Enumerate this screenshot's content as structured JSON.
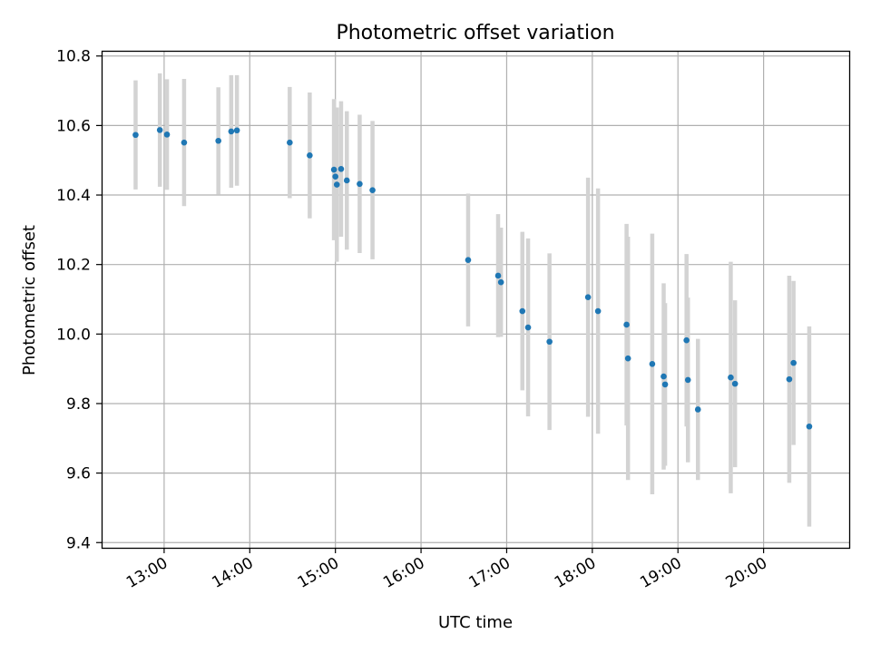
{
  "chart_data": {
    "type": "scatter",
    "title": "Photometric offset variation",
    "xlabel": "UTC time",
    "ylabel": "Photometric offset",
    "x_tick_labels": [
      "13:00",
      "14:00",
      "15:00",
      "16:00",
      "17:00",
      "18:00",
      "19:00",
      "20:00"
    ],
    "x_ticks_hours": [
      13,
      14,
      15,
      16,
      17,
      18,
      19,
      20
    ],
    "xlim_hours": [
      12.27,
      21.0
    ],
    "y_tick_labels": [
      "9.4",
      "9.6",
      "9.8",
      "10.0",
      "10.2",
      "10.4",
      "10.6",
      "10.8"
    ],
    "y_ticks": [
      9.4,
      9.6,
      9.8,
      10.0,
      10.2,
      10.4,
      10.6,
      10.8
    ],
    "ylim": [
      9.385,
      10.815
    ],
    "grid": true,
    "point_color": "#1f77b4",
    "errorbar_color": "#d3d3d3",
    "points": [
      {
        "x": "12:40",
        "y": 10.573,
        "err": 0.157
      },
      {
        "x": "12:57",
        "y": 10.587,
        "err": 0.163
      },
      {
        "x": "13:02",
        "y": 10.574,
        "err": 0.159
      },
      {
        "x": "13:14",
        "y": 10.551,
        "err": 0.183
      },
      {
        "x": "13:38",
        "y": 10.556,
        "err": 0.154
      },
      {
        "x": "13:47",
        "y": 10.583,
        "err": 0.162
      },
      {
        "x": "13:51",
        "y": 10.586,
        "err": 0.159
      },
      {
        "x": "14:28",
        "y": 10.551,
        "err": 0.16
      },
      {
        "x": "14:42",
        "y": 10.514,
        "err": 0.181
      },
      {
        "x": "14:59",
        "y": 10.473,
        "err": 0.203
      },
      {
        "x": "15:00",
        "y": 10.453,
        "err": 0.172
      },
      {
        "x": "15:01",
        "y": 10.43,
        "err": 0.222
      },
      {
        "x": "15:04",
        "y": 10.475,
        "err": 0.195
      },
      {
        "x": "15:08",
        "y": 10.442,
        "err": 0.199
      },
      {
        "x": "15:17",
        "y": 10.432,
        "err": 0.199
      },
      {
        "x": "15:26",
        "y": 10.414,
        "err": 0.199
      },
      {
        "x": "16:33",
        "y": 10.213,
        "err": 0.191
      },
      {
        "x": "16:54",
        "y": 10.168,
        "err": 0.177
      },
      {
        "x": "16:56",
        "y": 10.149,
        "err": 0.157
      },
      {
        "x": "17:11",
        "y": 10.066,
        "err": 0.228
      },
      {
        "x": "17:15",
        "y": 10.019,
        "err": 0.256
      },
      {
        "x": "17:30",
        "y": 9.978,
        "err": 0.254
      },
      {
        "x": "17:57",
        "y": 10.106,
        "err": 0.344
      },
      {
        "x": "18:04",
        "y": 10.066,
        "err": 0.353
      },
      {
        "x": "18:24",
        "y": 10.027,
        "err": 0.29
      },
      {
        "x": "18:25",
        "y": 9.93,
        "err": 0.35
      },
      {
        "x": "18:42",
        "y": 9.914,
        "err": 0.375
      },
      {
        "x": "18:50",
        "y": 9.878,
        "err": 0.268
      },
      {
        "x": "18:51",
        "y": 9.855,
        "err": 0.234
      },
      {
        "x": "19:06",
        "y": 9.982,
        "err": 0.248
      },
      {
        "x": "19:07",
        "y": 9.868,
        "err": 0.237
      },
      {
        "x": "19:14",
        "y": 9.783,
        "err": 0.203
      },
      {
        "x": "19:37",
        "y": 9.875,
        "err": 0.333
      },
      {
        "x": "19:40",
        "y": 9.857,
        "err": 0.24
      },
      {
        "x": "20:18",
        "y": 9.87,
        "err": 0.298
      },
      {
        "x": "20:21",
        "y": 9.917,
        "err": 0.236
      },
      {
        "x": "20:32",
        "y": 9.734,
        "err": 0.288
      }
    ]
  }
}
